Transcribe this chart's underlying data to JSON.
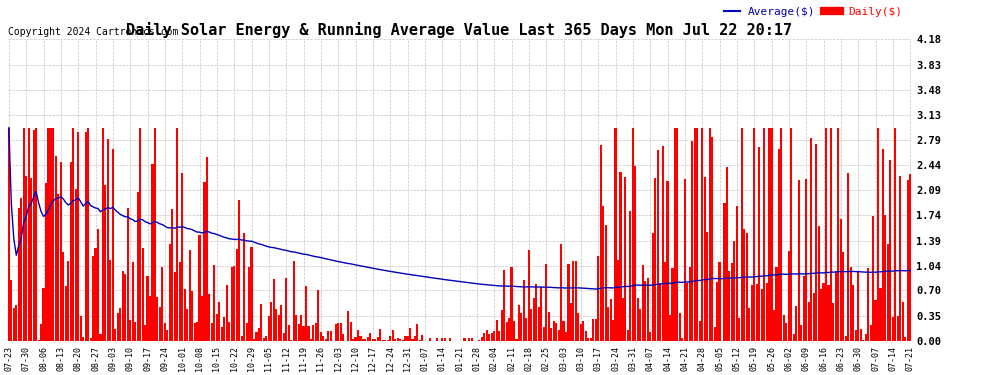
{
  "title": "Daily Solar Energy & Running Average Value Last 365 Days Mon Jul 22 20:17",
  "copyright": "Copyright 2024 Cartronics.com",
  "ylabel_right_ticks": [
    0.0,
    0.35,
    0.7,
    1.04,
    1.39,
    1.74,
    2.09,
    2.44,
    2.79,
    3.13,
    3.48,
    3.83,
    4.18
  ],
  "ylim": [
    0.0,
    4.18
  ],
  "bar_color": "#FF0000",
  "avg_line_color": "#0000BB",
  "background_color": "#FFFFFF",
  "grid_color": "#AAAAAA",
  "title_fontsize": 11,
  "copyright_fontsize": 7,
  "legend_avg_color": "#0000BB",
  "legend_daily_color": "#FF0000",
  "num_bars": 365,
  "tick_interval": 7
}
